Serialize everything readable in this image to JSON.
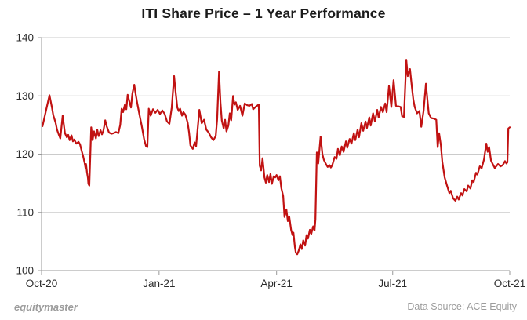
{
  "title": "ITI Share Price – 1 Year Performance",
  "footer": {
    "brand": "equitymaster",
    "source": "Data Source: ACE Equity"
  },
  "colors": {
    "line": "#c11212",
    "grid": "#cbcbcb",
    "axis": "#999999",
    "tick_text": "#2b2b2b",
    "title_text": "#1a1a1a",
    "footer_text": "#9c9c9c",
    "background": "#ffffff"
  },
  "chart_data": {
    "type": "line",
    "title": "ITI Share Price – 1 Year Performance",
    "xlabel": "",
    "ylabel": "",
    "ylim": [
      100,
      140
    ],
    "y_ticks": [
      100,
      110,
      120,
      130,
      140
    ],
    "x_ticks": [
      {
        "label": "Oct-20",
        "u": 0.0
      },
      {
        "label": "Jan-21",
        "u": 0.251
      },
      {
        "label": "Apr-21",
        "u": 0.502
      },
      {
        "label": "Jul-21",
        "u": 0.75
      },
      {
        "label": "Oct-21",
        "u": 1.0
      }
    ],
    "grid": "horizontal",
    "legend": "none",
    "series": [
      {
        "name": "ITI Share Price",
        "color": "#c11212",
        "points": [
          [
            0.002,
            124.8
          ],
          [
            0.007,
            126.6
          ],
          [
            0.012,
            128.4
          ],
          [
            0.017,
            130.1
          ],
          [
            0.022,
            128.1
          ],
          [
            0.025,
            126.7
          ],
          [
            0.03,
            125.4
          ],
          [
            0.033,
            124.2
          ],
          [
            0.037,
            123.3
          ],
          [
            0.04,
            122.7
          ],
          [
            0.045,
            126.6
          ],
          [
            0.05,
            123.6
          ],
          [
            0.054,
            122.9
          ],
          [
            0.057,
            123.3
          ],
          [
            0.06,
            122.4
          ],
          [
            0.064,
            123.2
          ],
          [
            0.067,
            122.2
          ],
          [
            0.07,
            122.5
          ],
          [
            0.074,
            121.8
          ],
          [
            0.079,
            122.1
          ],
          [
            0.082,
            121.7
          ],
          [
            0.085,
            120.8
          ],
          [
            0.089,
            119.6
          ],
          [
            0.092,
            118.5
          ],
          [
            0.094,
            117.6
          ],
          [
            0.095,
            118.3
          ],
          [
            0.097,
            116.9
          ],
          [
            0.099,
            115.9
          ],
          [
            0.1,
            114.9
          ],
          [
            0.102,
            114.6
          ],
          [
            0.106,
            124.6
          ],
          [
            0.109,
            122.4
          ],
          [
            0.112,
            123.9
          ],
          [
            0.116,
            122.7
          ],
          [
            0.119,
            124.2
          ],
          [
            0.122,
            123.1
          ],
          [
            0.126,
            124.1
          ],
          [
            0.129,
            123.4
          ],
          [
            0.132,
            124.0
          ],
          [
            0.136,
            125.8
          ],
          [
            0.139,
            124.8
          ],
          [
            0.144,
            123.7
          ],
          [
            0.149,
            123.5
          ],
          [
            0.154,
            123.6
          ],
          [
            0.159,
            123.8
          ],
          [
            0.164,
            123.6
          ],
          [
            0.168,
            125.0
          ],
          [
            0.171,
            127.8
          ],
          [
            0.174,
            127.2
          ],
          [
            0.178,
            128.5
          ],
          [
            0.181,
            127.7
          ],
          [
            0.184,
            130.2
          ],
          [
            0.188,
            128.9
          ],
          [
            0.191,
            128.0
          ],
          [
            0.194,
            130.4
          ],
          [
            0.198,
            131.9
          ],
          [
            0.201,
            130.3
          ],
          [
            0.204,
            128.9
          ],
          [
            0.209,
            126.8
          ],
          [
            0.214,
            124.8
          ],
          [
            0.219,
            122.6
          ],
          [
            0.223,
            121.4
          ],
          [
            0.226,
            121.2
          ],
          [
            0.229,
            127.8
          ],
          [
            0.233,
            126.6
          ],
          [
            0.238,
            127.7
          ],
          [
            0.243,
            127.1
          ],
          [
            0.248,
            127.6
          ],
          [
            0.253,
            126.9
          ],
          [
            0.258,
            127.5
          ],
          [
            0.263,
            126.9
          ],
          [
            0.268,
            125.6
          ],
          [
            0.273,
            125.2
          ],
          [
            0.278,
            128.0
          ],
          [
            0.283,
            133.4
          ],
          [
            0.286,
            131.0
          ],
          [
            0.29,
            128.0
          ],
          [
            0.293,
            127.4
          ],
          [
            0.296,
            127.8
          ],
          [
            0.3,
            126.6
          ],
          [
            0.303,
            127.2
          ],
          [
            0.307,
            126.8
          ],
          [
            0.312,
            125.4
          ],
          [
            0.315,
            123.7
          ],
          [
            0.318,
            121.5
          ],
          [
            0.323,
            120.9
          ],
          [
            0.327,
            122.0
          ],
          [
            0.33,
            121.3
          ],
          [
            0.333,
            124.0
          ],
          [
            0.337,
            127.6
          ],
          [
            0.342,
            125.3
          ],
          [
            0.347,
            125.9
          ],
          [
            0.352,
            124.2
          ],
          [
            0.357,
            123.7
          ],
          [
            0.362,
            122.9
          ],
          [
            0.367,
            122.4
          ],
          [
            0.372,
            123.1
          ],
          [
            0.375,
            126.0
          ],
          [
            0.379,
            134.2
          ],
          [
            0.382,
            128.9
          ],
          [
            0.385,
            125.8
          ],
          [
            0.389,
            124.4
          ],
          [
            0.392,
            125.9
          ],
          [
            0.395,
            123.9
          ],
          [
            0.399,
            124.9
          ],
          [
            0.402,
            127.0
          ],
          [
            0.405,
            125.8
          ],
          [
            0.409,
            130.0
          ],
          [
            0.412,
            128.5
          ],
          [
            0.415,
            128.9
          ],
          [
            0.419,
            127.6
          ],
          [
            0.424,
            128.3
          ],
          [
            0.429,
            126.6
          ],
          [
            0.434,
            128.7
          ],
          [
            0.439,
            128.4
          ],
          [
            0.444,
            128.3
          ],
          [
            0.449,
            128.6
          ],
          [
            0.452,
            127.7
          ],
          [
            0.457,
            128.1
          ],
          [
            0.462,
            128.4
          ],
          [
            0.464,
            128.5
          ],
          [
            0.466,
            118.0
          ],
          [
            0.469,
            117.2
          ],
          [
            0.472,
            119.3
          ],
          [
            0.476,
            116.0
          ],
          [
            0.479,
            115.1
          ],
          [
            0.482,
            116.4
          ],
          [
            0.486,
            115.2
          ],
          [
            0.489,
            116.6
          ],
          [
            0.492,
            114.9
          ],
          [
            0.496,
            116.2
          ],
          [
            0.499,
            116.0
          ],
          [
            0.502,
            116.4
          ],
          [
            0.506,
            115.5
          ],
          [
            0.509,
            116.2
          ],
          [
            0.512,
            114.2
          ],
          [
            0.516,
            112.8
          ],
          [
            0.519,
            109.2
          ],
          [
            0.523,
            110.5
          ],
          [
            0.526,
            108.5
          ],
          [
            0.529,
            109.3
          ],
          [
            0.533,
            107.0
          ],
          [
            0.536,
            106.1
          ],
          [
            0.538,
            106.5
          ],
          [
            0.541,
            104.1
          ],
          [
            0.543,
            103.1
          ],
          [
            0.546,
            102.8
          ],
          [
            0.549,
            103.4
          ],
          [
            0.553,
            104.5
          ],
          [
            0.556,
            103.7
          ],
          [
            0.559,
            105.2
          ],
          [
            0.563,
            104.3
          ],
          [
            0.566,
            106.1
          ],
          [
            0.569,
            105.5
          ],
          [
            0.573,
            107.0
          ],
          [
            0.576,
            106.3
          ],
          [
            0.58,
            107.6
          ],
          [
            0.583,
            106.9
          ],
          [
            0.585,
            108.8
          ],
          [
            0.588,
            120.3
          ],
          [
            0.591,
            118.4
          ],
          [
            0.596,
            123.0
          ],
          [
            0.6,
            119.9
          ],
          [
            0.603,
            119.0
          ],
          [
            0.608,
            118.2
          ],
          [
            0.611,
            117.8
          ],
          [
            0.615,
            118.1
          ],
          [
            0.618,
            117.7
          ],
          [
            0.621,
            118.1
          ],
          [
            0.626,
            119.5
          ],
          [
            0.63,
            119.2
          ],
          [
            0.633,
            120.9
          ],
          [
            0.637,
            119.8
          ],
          [
            0.641,
            121.3
          ],
          [
            0.645,
            120.4
          ],
          [
            0.65,
            122.2
          ],
          [
            0.653,
            121.1
          ],
          [
            0.658,
            122.6
          ],
          [
            0.662,
            121.8
          ],
          [
            0.667,
            123.6
          ],
          [
            0.67,
            122.4
          ],
          [
            0.675,
            124.2
          ],
          [
            0.678,
            122.9
          ],
          [
            0.683,
            125.3
          ],
          [
            0.687,
            124.0
          ],
          [
            0.692,
            125.6
          ],
          [
            0.695,
            124.5
          ],
          [
            0.7,
            126.3
          ],
          [
            0.703,
            124.9
          ],
          [
            0.708,
            127.0
          ],
          [
            0.712,
            125.6
          ],
          [
            0.717,
            127.6
          ],
          [
            0.72,
            126.3
          ],
          [
            0.725,
            128.1
          ],
          [
            0.729,
            127.2
          ],
          [
            0.734,
            128.7
          ],
          [
            0.737,
            127.2
          ],
          [
            0.742,
            131.7
          ],
          [
            0.747,
            128.1
          ],
          [
            0.752,
            132.7
          ],
          [
            0.757,
            128.3
          ],
          [
            0.762,
            128.2
          ],
          [
            0.767,
            128.1
          ],
          [
            0.77,
            126.5
          ],
          [
            0.774,
            126.4
          ],
          [
            0.779,
            136.2
          ],
          [
            0.782,
            133.4
          ],
          [
            0.787,
            134.6
          ],
          [
            0.791,
            131.5
          ],
          [
            0.794,
            129.4
          ],
          [
            0.797,
            128.1
          ],
          [
            0.802,
            127.0
          ],
          [
            0.807,
            127.4
          ],
          [
            0.811,
            124.7
          ],
          [
            0.816,
            127.5
          ],
          [
            0.821,
            132.1
          ],
          [
            0.824,
            129.5
          ],
          [
            0.827,
            127.0
          ],
          [
            0.832,
            126.2
          ],
          [
            0.838,
            126.1
          ],
          [
            0.843,
            125.9
          ],
          [
            0.846,
            121.2
          ],
          [
            0.849,
            123.6
          ],
          [
            0.853,
            121.5
          ],
          [
            0.856,
            118.7
          ],
          [
            0.861,
            116.0
          ],
          [
            0.866,
            114.6
          ],
          [
            0.871,
            113.3
          ],
          [
            0.874,
            113.7
          ],
          [
            0.879,
            112.4
          ],
          [
            0.884,
            112.0
          ],
          [
            0.888,
            112.7
          ],
          [
            0.891,
            112.2
          ],
          [
            0.896,
            113.3
          ],
          [
            0.899,
            112.9
          ],
          [
            0.903,
            114.0
          ],
          [
            0.908,
            113.6
          ],
          [
            0.911,
            114.6
          ],
          [
            0.916,
            114.1
          ],
          [
            0.92,
            115.5
          ],
          [
            0.923,
            115.2
          ],
          [
            0.928,
            116.8
          ],
          [
            0.931,
            116.5
          ],
          [
            0.936,
            117.9
          ],
          [
            0.94,
            117.6
          ],
          [
            0.945,
            119.1
          ],
          [
            0.95,
            121.8
          ],
          [
            0.953,
            120.4
          ],
          [
            0.956,
            121.2
          ],
          [
            0.96,
            118.9
          ],
          [
            0.963,
            118.4
          ],
          [
            0.968,
            117.6
          ],
          [
            0.975,
            118.3
          ],
          [
            0.98,
            117.9
          ],
          [
            0.985,
            118.1
          ],
          [
            0.99,
            118.8
          ],
          [
            0.993,
            118.4
          ],
          [
            0.995,
            118.6
          ],
          [
            0.997,
            124.4
          ],
          [
            1.0,
            124.6
          ]
        ]
      }
    ]
  }
}
